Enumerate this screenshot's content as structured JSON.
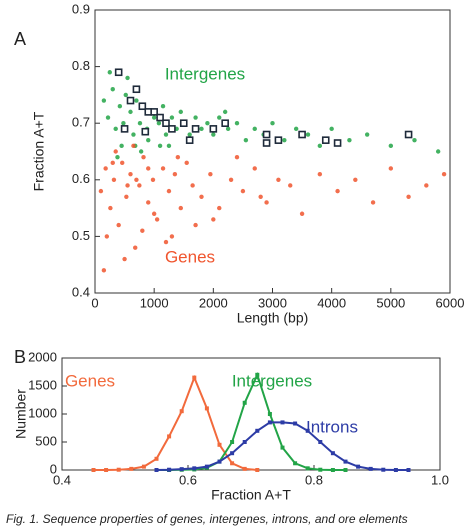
{
  "chart_data": [
    {
      "type": "scatter",
      "panel_label": "A",
      "xlabel": "Length (bp)",
      "ylabel": "Fraction A+T",
      "xlim": [
        0,
        6000
      ],
      "ylim": [
        0.4,
        0.9
      ],
      "xticks": [
        0,
        1000,
        2000,
        3000,
        4000,
        5000,
        6000
      ],
      "yticks": [
        0.4,
        0.5,
        0.6,
        0.7,
        0.8,
        0.9
      ],
      "series": [
        {
          "name": "Intergenes",
          "color": "#22a447",
          "x": [
            150,
            220,
            300,
            350,
            420,
            480,
            520,
            600,
            650,
            700,
            760,
            820,
            880,
            950,
            1000,
            1080,
            1150,
            1200,
            1300,
            1380,
            1450,
            1520,
            1600,
            1700,
            1800,
            1900,
            2000,
            2100,
            2250,
            2400,
            2550,
            2700,
            2850,
            3000,
            3200,
            3400,
            3600,
            3800,
            4000,
            4300,
            4600,
            5000,
            5400,
            5800,
            250,
            450,
            550,
            680,
            900,
            1250,
            1600,
            2200,
            380,
            780,
            1100
          ],
          "values": [
            0.74,
            0.71,
            0.76,
            0.69,
            0.73,
            0.7,
            0.75,
            0.72,
            0.68,
            0.74,
            0.7,
            0.73,
            0.69,
            0.72,
            0.71,
            0.7,
            0.73,
            0.68,
            0.71,
            0.69,
            0.72,
            0.7,
            0.68,
            0.71,
            0.69,
            0.7,
            0.68,
            0.71,
            0.69,
            0.7,
            0.67,
            0.69,
            0.68,
            0.7,
            0.67,
            0.69,
            0.68,
            0.66,
            0.69,
            0.67,
            0.68,
            0.66,
            0.67,
            0.65,
            0.79,
            0.66,
            0.78,
            0.66,
            0.67,
            0.66,
            0.67,
            0.72,
            0.64,
            0.65,
            0.66
          ]
        },
        {
          "name": "Genes",
          "color": "#f0552e",
          "x": [
            100,
            180,
            260,
            320,
            400,
            460,
            530,
            600,
            680,
            750,
            820,
            900,
            980,
            1050,
            1150,
            1250,
            1350,
            1450,
            1550,
            1650,
            1800,
            1950,
            2100,
            2300,
            2500,
            2700,
            2900,
            3100,
            3300,
            3500,
            3800,
            4100,
            4400,
            4700,
            5000,
            5300,
            5600,
            5900,
            200,
            350,
            500,
            650,
            800,
            1000,
            1200,
            1400,
            1700,
            2000,
            2400,
            2800,
            300,
            550,
            900,
            1300,
            150,
            700
          ],
          "values": [
            0.58,
            0.62,
            0.55,
            0.6,
            0.52,
            0.63,
            0.57,
            0.61,
            0.48,
            0.59,
            0.64,
            0.56,
            0.6,
            0.53,
            0.62,
            0.58,
            0.61,
            0.55,
            0.63,
            0.59,
            0.57,
            0.61,
            0.55,
            0.6,
            0.58,
            0.62,
            0.56,
            0.6,
            0.59,
            0.54,
            0.61,
            0.58,
            0.6,
            0.56,
            0.62,
            0.57,
            0.59,
            0.61,
            0.5,
            0.65,
            0.46,
            0.66,
            0.51,
            0.54,
            0.49,
            0.64,
            0.52,
            0.53,
            0.64,
            0.57,
            0.63,
            0.59,
            0.62,
            0.5,
            0.44,
            0.6
          ]
        },
        {
          "color": "#1e2a3a",
          "marker": "square",
          "x": [
            400,
            600,
            700,
            800,
            900,
            1000,
            1100,
            1200,
            1300,
            1500,
            1700,
            2000,
            2200,
            2900,
            2900,
            3100,
            3500,
            3900,
            4100,
            5300,
            500,
            850,
            1600
          ],
          "values": [
            0.79,
            0.74,
            0.76,
            0.73,
            0.72,
            0.72,
            0.71,
            0.7,
            0.69,
            0.7,
            0.69,
            0.69,
            0.7,
            0.68,
            0.665,
            0.67,
            0.68,
            0.67,
            0.665,
            0.68,
            0.69,
            0.685,
            0.67
          ]
        }
      ]
    },
    {
      "type": "line",
      "panel_label": "B",
      "xlabel": "Fraction A+T",
      "ylabel": "Number",
      "xlim": [
        0.4,
        1
      ],
      "ylim": [
        0,
        2000
      ],
      "xticks": [
        0.4,
        0.6,
        0.8,
        {
          "value": 1,
          "label": "1.0"
        }
      ],
      "yticks": [
        0,
        500,
        1000,
        1500,
        2000
      ],
      "series": [
        {
          "name": "Genes",
          "color": "#f26a3c",
          "x": [
            0.45,
            0.47,
            0.49,
            0.51,
            0.53,
            0.55,
            0.57,
            0.59,
            0.61,
            0.63,
            0.65,
            0.67,
            0.69,
            0.71
          ],
          "values": [
            0,
            0,
            5,
            20,
            60,
            200,
            600,
            1050,
            1650,
            1100,
            450,
            120,
            20,
            0
          ]
        },
        {
          "name": "Intergenes",
          "color": "#22a447",
          "x": [
            0.55,
            0.57,
            0.59,
            0.61,
            0.63,
            0.65,
            0.67,
            0.69,
            0.71,
            0.73,
            0.75,
            0.77,
            0.79,
            0.81,
            0.83,
            0.85
          ],
          "values": [
            0,
            0,
            5,
            10,
            40,
            150,
            500,
            1200,
            1700,
            1000,
            400,
            120,
            30,
            5,
            0,
            0
          ]
        },
        {
          "name": "Introns",
          "color": "#2d3ca6",
          "x": [
            0.55,
            0.57,
            0.59,
            0.61,
            0.63,
            0.65,
            0.67,
            0.69,
            0.71,
            0.73,
            0.75,
            0.77,
            0.79,
            0.81,
            0.83,
            0.85,
            0.87,
            0.89,
            0.91,
            0.93,
            0.95
          ],
          "values": [
            0,
            5,
            15,
            30,
            60,
            150,
            300,
            500,
            700,
            850,
            850,
            830,
            700,
            500,
            300,
            150,
            60,
            20,
            5,
            0,
            0
          ]
        }
      ]
    }
  ],
  "caption": "Fig. 1.    Sequence properties of genes, intergenes, introns, and ore elements"
}
